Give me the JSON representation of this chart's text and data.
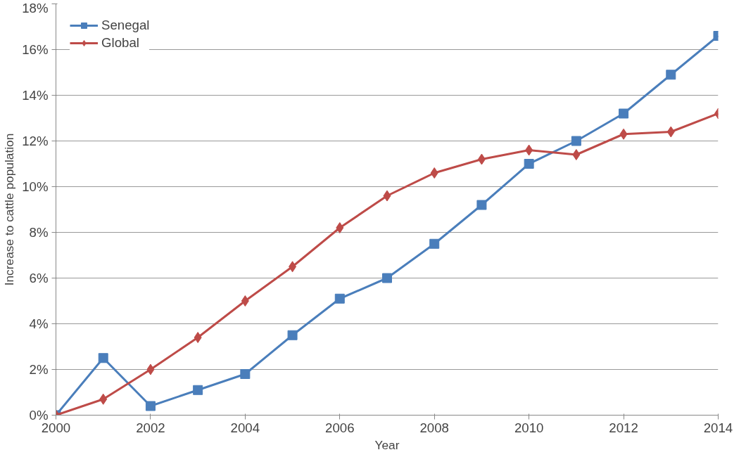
{
  "chart_data": {
    "type": "line",
    "xlabel": "Year",
    "ylabel": "Increase to cattle population",
    "x": [
      2000,
      2001,
      2002,
      2003,
      2004,
      2005,
      2006,
      2007,
      2008,
      2009,
      2010,
      2011,
      2012,
      2013,
      2014
    ],
    "series": [
      {
        "name": "Senegal",
        "color": "#4a7ebb",
        "marker": "square",
        "values": [
          0,
          2.5,
          0.4,
          1.1,
          1.8,
          3.5,
          5.1,
          6.0,
          7.5,
          9.2,
          11.0,
          12.0,
          13.2,
          14.9,
          16.6
        ]
      },
      {
        "name": "Global",
        "color": "#be4b48",
        "marker": "diamond",
        "values": [
          0,
          0.7,
          2.0,
          3.4,
          5.0,
          6.5,
          8.2,
          9.6,
          10.6,
          11.2,
          11.6,
          11.4,
          12.3,
          12.4,
          13.2
        ]
      }
    ],
    "xlim": [
      2000,
      2014
    ],
    "xticks": [
      2000,
      2002,
      2004,
      2006,
      2008,
      2010,
      2012,
      2014
    ],
    "ylim": [
      0,
      18
    ],
    "yticks": [
      {
        "value": 0,
        "label": "0%"
      },
      {
        "value": 2,
        "label": "2%"
      },
      {
        "value": 4,
        "label": "4%"
      },
      {
        "value": 6,
        "label": "6%"
      },
      {
        "value": 8,
        "label": "8%"
      },
      {
        "value": 10,
        "label": "10%"
      },
      {
        "value": 12,
        "label": "12%"
      },
      {
        "value": 14,
        "label": "14%"
      },
      {
        "value": 16,
        "label": "16%"
      },
      {
        "value": 18,
        "label": "18%"
      }
    ],
    "grid": "y",
    "legend": "top left",
    "line_style": "solid"
  }
}
